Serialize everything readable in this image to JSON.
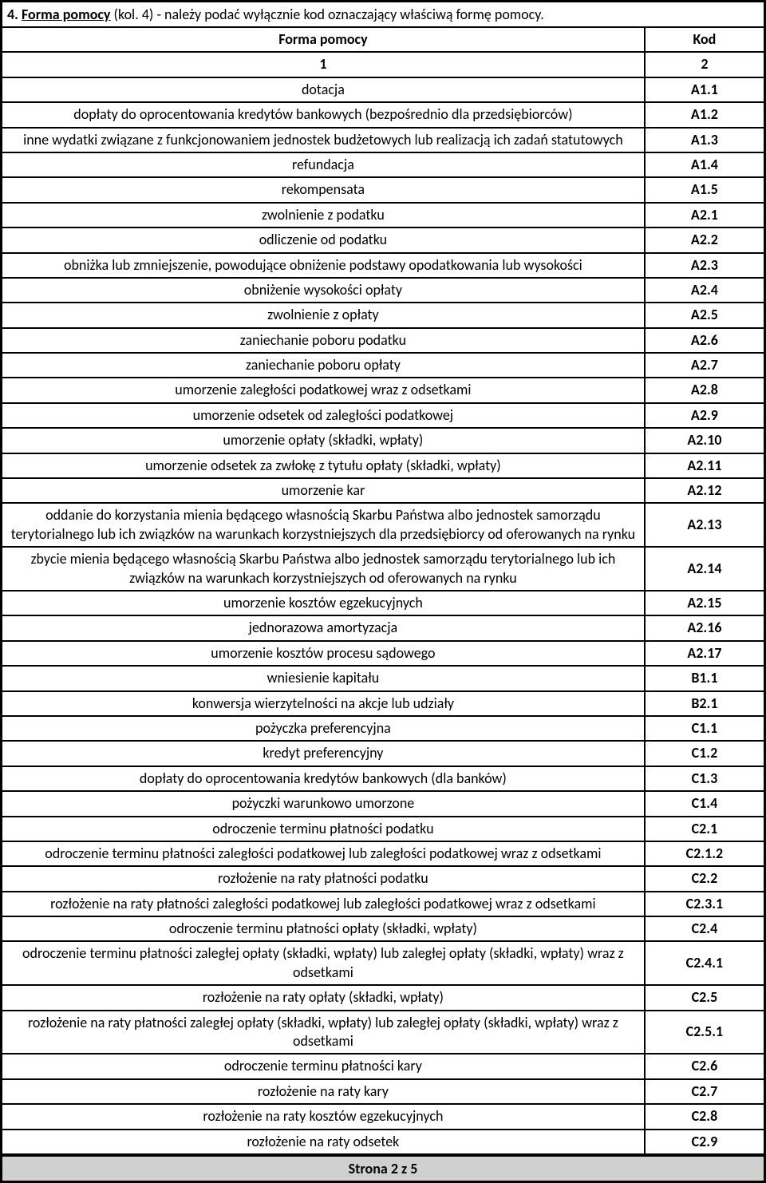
{
  "header": {
    "index": "4.",
    "title_underlined": "Forma pomocy",
    "col_ref": "(kol. 4)",
    "rest": " - należy podać wyłącznie kod oznaczający właściwą formę pomocy."
  },
  "table": {
    "head": {
      "form": "Forma pomocy",
      "code": "Kod"
    },
    "subhead": {
      "form": "1",
      "code": "2"
    },
    "rows": [
      {
        "form": "dotacja",
        "code": "A1.1"
      },
      {
        "form": "dopłaty do oprocentowania kredytów bankowych (bezpośrednio dla przedsiębiorców)",
        "code": "A1.2"
      },
      {
        "form": "inne wydatki związane z funkcjonowaniem jednostek budżetowych lub realizacją ich zadań statutowych",
        "code": "A1.3"
      },
      {
        "form": "refundacja",
        "code": "A1.4"
      },
      {
        "form": "rekompensata",
        "code": "A1.5"
      },
      {
        "form": "zwolnienie z podatku",
        "code": "A2.1"
      },
      {
        "form": "odliczenie od podatku",
        "code": "A2.2"
      },
      {
        "form": "obniżka lub zmniejszenie, powodujące obniżenie podstawy opodatkowania lub wysokości",
        "code": "A2.3"
      },
      {
        "form": "obniżenie wysokości opłaty",
        "code": "A2.4"
      },
      {
        "form": "zwolnienie z opłaty",
        "code": "A2.5"
      },
      {
        "form": "zaniechanie poboru podatku",
        "code": "A2.6"
      },
      {
        "form": "zaniechanie poboru opłaty",
        "code": "A2.7"
      },
      {
        "form": "umorzenie zaległości podatkowej wraz z odsetkami",
        "code": "A2.8"
      },
      {
        "form": "umorzenie odsetek od zaległości podatkowej",
        "code": "A2.9"
      },
      {
        "form": "umorzenie opłaty (składki, wpłaty)",
        "code": "A2.10"
      },
      {
        "form": "umorzenie odsetek za zwłokę z tytułu opłaty (składki, wpłaty)",
        "code": "A2.11"
      },
      {
        "form": "umorzenie kar",
        "code": "A2.12"
      },
      {
        "form": "oddanie do korzystania mienia będącego własnością Skarbu Państwa albo jednostek samorządu terytorialnego lub ich związków na warunkach korzystniejszych dla przedsiębiorcy od oferowanych na rynku",
        "code": "A2.13"
      },
      {
        "form": "zbycie mienia będącego własnością Skarbu Państwa albo jednostek samorządu terytorialnego lub ich związków na warunkach korzystniejszych od oferowanych na rynku",
        "code": "A2.14"
      },
      {
        "form": "umorzenie kosztów egzekucyjnych",
        "code": "A2.15"
      },
      {
        "form": "jednorazowa amortyzacja",
        "code": "A2.16"
      },
      {
        "form": "umorzenie kosztów procesu sądowego",
        "code": "A2.17"
      },
      {
        "form": "wniesienie kapitału",
        "code": "B1.1"
      },
      {
        "form": "konwersja wierzytelności na akcje lub udziały",
        "code": "B2.1"
      },
      {
        "form": "pożyczka preferencyjna",
        "code": "C1.1"
      },
      {
        "form": "kredyt preferencyjny",
        "code": "C1.2"
      },
      {
        "form": "dopłaty do oprocentowania kredytów bankowych (dla banków)",
        "code": "C1.3"
      },
      {
        "form": "pożyczki warunkowo umorzone",
        "code": "C1.4"
      },
      {
        "form": "odroczenie terminu płatności podatku",
        "code": "C2.1"
      },
      {
        "form": "odroczenie terminu płatności zaległości podatkowej lub zaległości podatkowej wraz z odsetkami",
        "code": "C2.1.2"
      },
      {
        "form": "rozłożenie na raty płatności podatku",
        "code": "C2.2"
      },
      {
        "form": "rozłożenie na raty płatności zaległości podatkowej lub zaległości podatkowej wraz z odsetkami",
        "code": "C2.3.1"
      },
      {
        "form": "odroczenie terminu płatności opłaty (składki, wpłaty)",
        "code": "C2.4"
      },
      {
        "form": "odroczenie terminu płatności zaległej opłaty (składki, wpłaty) lub zaległej opłaty (składki, wpłaty) wraz z odsetkami",
        "code": "C2.4.1"
      },
      {
        "form": "rozłożenie na raty opłaty (składki, wpłaty)",
        "code": "C2.5"
      },
      {
        "form": "rozłożenie na raty płatności zaległej opłaty (składki, wpłaty) lub zaległej opłaty (składki, wpłaty) wraz z odsetkami",
        "code": "C2.5.1"
      },
      {
        "form": "odroczenie terminu płatności kary",
        "code": "C2.6"
      },
      {
        "form": "rozłożenie na raty kary",
        "code": "C2.7"
      },
      {
        "form": "rozłożenie na raty kosztów egzekucyjnych",
        "code": "C2.8"
      },
      {
        "form": "rozłożenie na raty odsetek",
        "code": "C2.9"
      }
    ]
  },
  "footer": "Strona 2 z 5"
}
